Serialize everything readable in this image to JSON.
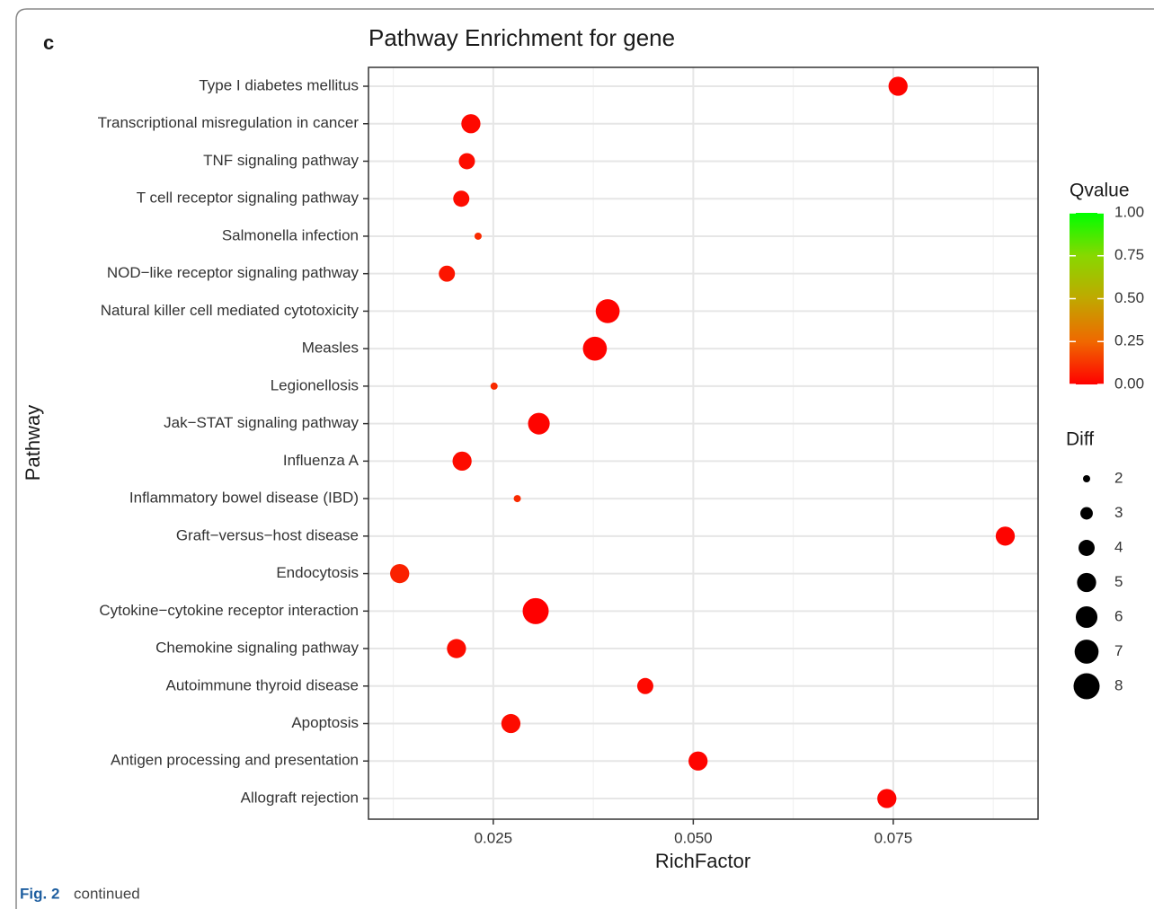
{
  "panel_label": "c",
  "caption": {
    "label": "Fig. 2",
    "text": "continued"
  },
  "chart_data": {
    "type": "scatter",
    "title": "Pathway Enrichment for gene",
    "x_label": "RichFactor",
    "y_label": "Pathway",
    "categories": [
      "Type I diabetes mellitus",
      "Transcriptional misregulation in cancer",
      "TNF signaling pathway",
      "T cell receptor signaling pathway",
      "Salmonella infection",
      "NOD−like receptor signaling pathway",
      "Natural killer cell mediated cytotoxicity",
      "Measles",
      "Legionellosis",
      "Jak−STAT signaling pathway",
      "Influenza A",
      "Inflammatory bowel disease (IBD)",
      "Graft−versus−host disease",
      "Endocytosis",
      "Cytokine−cytokine receptor interaction",
      "Chemokine signaling pathway",
      "Autoimmune thyroid disease",
      "Apoptosis",
      "Antigen processing and presentation",
      "Allograft rejection"
    ],
    "x": [
      0.0756,
      0.0222,
      0.0217,
      0.021,
      0.0231,
      0.0192,
      0.0393,
      0.0377,
      0.0251,
      0.0307,
      0.0211,
      0.028,
      0.089,
      0.0133,
      0.0303,
      0.0204,
      0.044,
      0.0272,
      0.0506,
      0.0742
    ],
    "size": [
      5,
      5,
      4,
      4,
      2,
      4,
      7,
      7,
      2,
      6,
      5,
      2,
      5,
      5,
      8,
      5,
      4,
      5,
      5,
      5
    ],
    "qvalue": [
      0.01,
      0.02,
      0.03,
      0.03,
      0.1,
      0.05,
      0.01,
      0.01,
      0.1,
      0.01,
      0.03,
      0.1,
      0.01,
      0.08,
      0.0,
      0.03,
      0.02,
      0.03,
      0.01,
      0.01
    ],
    "xlim": [
      0.0094,
      0.0931
    ],
    "xticks": [
      0.025,
      {
        "value": 0.05,
        "label": "0.050"
      },
      0.075
    ],
    "x_minor_grid": [
      0.0125,
      0.0375,
      0.0625,
      0.0875
    ],
    "grid": true,
    "color_legend": {
      "title": "Qvalue",
      "lim": [
        0,
        1
      ],
      "colors": [
        "#ff0000",
        "#f06800",
        "#c0a800",
        "#88d800",
        "#00ff00"
      ],
      "ticks": [
        {
          "value": 0,
          "label": "0.00"
        },
        {
          "value": 0.25,
          "label": "0.25"
        },
        {
          "value": 0.5,
          "label": "0.50"
        },
        {
          "value": 0.75,
          "label": "0.75"
        },
        {
          "value": 1,
          "label": "1.00"
        }
      ]
    },
    "size_legend": {
      "title": "Diff",
      "values": [
        2,
        3,
        4,
        5,
        6,
        7,
        8
      ]
    }
  }
}
